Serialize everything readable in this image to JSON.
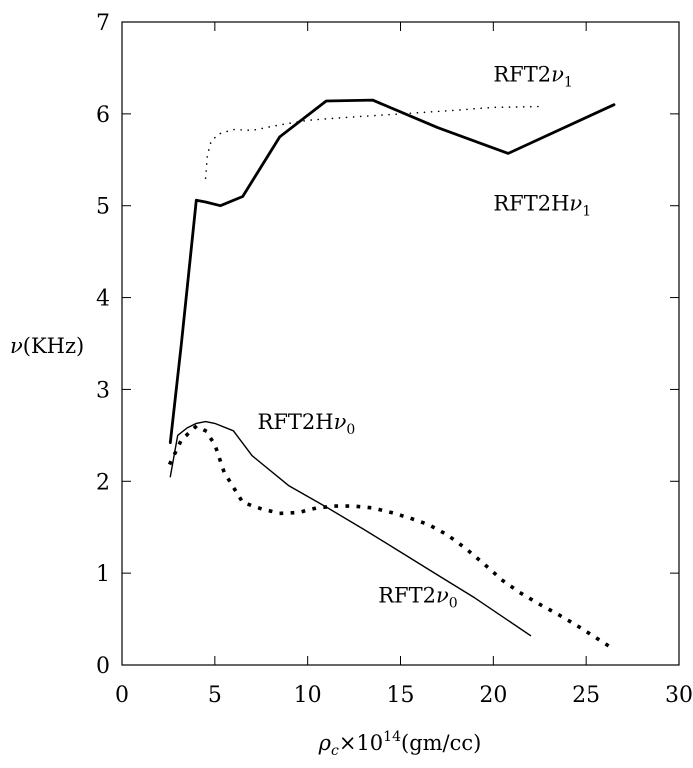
{
  "chart_data": {
    "type": "line",
    "title": "",
    "xlabel": {
      "prefix": "ρ",
      "sub": "c",
      "mid": "×10",
      "sup": "14",
      "suffix": "(gm/cc)"
    },
    "ylabel": {
      "prefix": "ν",
      "suffix": "(KHz)"
    },
    "xlim": [
      0,
      30
    ],
    "ylim": [
      0,
      7
    ],
    "xticks": [
      0,
      5,
      10,
      15,
      20,
      25,
      30
    ],
    "yticks": [
      0,
      1,
      2,
      3,
      4,
      5,
      6,
      7
    ],
    "xtick_labels": [
      "0",
      "5",
      "10",
      "15",
      "20",
      "25",
      "30"
    ],
    "ytick_labels": [
      "0",
      "1",
      "2",
      "3",
      "4",
      "5",
      "6",
      "7"
    ],
    "grid": false,
    "series": [
      {
        "style": "solid-thick",
        "color": "#000000",
        "x": [
          2.6,
          3.2,
          4.0,
          4.5,
          5.3,
          6.5,
          8.5,
          11.0,
          13.5,
          17.0,
          20.8,
          26.5
        ],
        "y": [
          2.42,
          3.5,
          5.06,
          5.04,
          5.0,
          5.1,
          5.75,
          6.14,
          6.15,
          5.85,
          5.57,
          6.1
        ]
      },
      {
        "style": "dotted-fine",
        "color": "#000000",
        "x": [
          4.5,
          4.6,
          4.8,
          5.2,
          6.0,
          7.0,
          8.5,
          10.0,
          12.0,
          15.0,
          18.0,
          20.0,
          22.5
        ],
        "y": [
          5.3,
          5.55,
          5.7,
          5.78,
          5.83,
          5.82,
          5.88,
          5.93,
          5.96,
          6.0,
          6.04,
          6.07,
          6.08
        ]
      },
      {
        "style": "solid-thin",
        "color": "#000000",
        "x": [
          2.6,
          3.0,
          3.5,
          4.0,
          4.5,
          5.0,
          6.0,
          7.0,
          9.0,
          11.0,
          13.0,
          15.0,
          17.0,
          19.0,
          22.0
        ],
        "y": [
          2.05,
          2.5,
          2.58,
          2.63,
          2.65,
          2.63,
          2.55,
          2.28,
          1.95,
          1.72,
          1.48,
          1.23,
          0.98,
          0.73,
          0.32
        ]
      },
      {
        "style": "dotted-coarse",
        "color": "#000000",
        "x": [
          2.6,
          3.2,
          4.0,
          4.5,
          5.0,
          5.5,
          6.5,
          7.5,
          8.5,
          9.5,
          10.5,
          11.5,
          12.5,
          13.5,
          14.5,
          15.5,
          16.5,
          17.5,
          18.5,
          19.5,
          20.5,
          21.5,
          22.5,
          23.5,
          24.5,
          25.5,
          26.5
        ],
        "y": [
          2.2,
          2.45,
          2.6,
          2.55,
          2.4,
          2.1,
          1.77,
          1.7,
          1.65,
          1.66,
          1.71,
          1.73,
          1.73,
          1.71,
          1.66,
          1.6,
          1.53,
          1.42,
          1.27,
          1.1,
          0.92,
          0.78,
          0.66,
          0.55,
          0.43,
          0.3,
          0.17
        ]
      }
    ],
    "annotations": [
      {
        "id": "rft2-nu1",
        "base": "RFT2",
        "greek": "ν",
        "sub": "1",
        "x": 20.0,
        "y": 6.35
      },
      {
        "id": "rft2h-nu1",
        "base": "RFT2H",
        "greek": "ν",
        "sub": "1",
        "x": 20.0,
        "y": 4.95
      },
      {
        "id": "rft2h-nu0",
        "base": "RFT2H",
        "greek": "ν",
        "sub": "0",
        "x": 7.3,
        "y": 2.57
      },
      {
        "id": "rft2-nu0",
        "base": "RFT2",
        "greek": "ν",
        "sub": "0",
        "x": 13.8,
        "y": 0.68
      }
    ]
  }
}
